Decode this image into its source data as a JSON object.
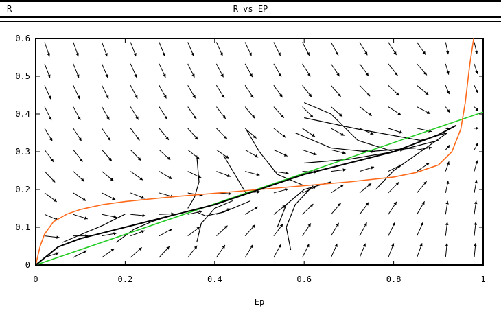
{
  "window": {
    "left_label": "R",
    "title": "R vs EP"
  },
  "chart_data": {
    "type": "line",
    "title": "R vs EP",
    "xlabel": "Ep",
    "ylabel": "",
    "xlim": [
      0,
      1
    ],
    "ylim": [
      0,
      0.6
    ],
    "x_ticks": [
      "0",
      "0.2",
      "0.4",
      "0.6",
      "0.8",
      "1"
    ],
    "x_tick_values": [
      0,
      0.2,
      0.4,
      0.6,
      0.8,
      1
    ],
    "y_ticks": [
      "0",
      "0.1",
      "0.2",
      "0.3",
      "0.4",
      "0.5",
      "0.6"
    ],
    "y_tick_values": [
      0,
      0.1,
      0.2,
      0.3,
      0.4,
      0.5,
      0.6
    ],
    "grid": false,
    "colors": {
      "green_line": "#22cc22",
      "orange_curve": "#ff6a1a",
      "trajectories": "#000000",
      "arrows": "#000000"
    },
    "series": [
      {
        "values_x": [
          0,
          1
        ],
        "values_y": [
          0,
          0.405
        ]
      },
      {
        "values_x": [
          0.0,
          0.01,
          0.02,
          0.04,
          0.07,
          0.1,
          0.15,
          0.2,
          0.3,
          0.4,
          0.5,
          0.6,
          0.7,
          0.8,
          0.85,
          0.9,
          0.93,
          0.95,
          0.96,
          0.97,
          0.98
        ],
        "values_y": [
          0.0,
          0.05,
          0.082,
          0.115,
          0.135,
          0.147,
          0.16,
          0.168,
          0.18,
          0.19,
          0.2,
          0.21,
          0.22,
          0.233,
          0.245,
          0.265,
          0.3,
          0.36,
          0.43,
          0.53,
          0.61
        ]
      },
      {
        "values_x": [
          0.0,
          0.05,
          0.1,
          0.2,
          0.3,
          0.4,
          0.5,
          0.6,
          0.7,
          0.8,
          0.9,
          0.94
        ],
        "values_y": [
          0.0,
          0.048,
          0.07,
          0.1,
          0.13,
          0.16,
          0.2,
          0.24,
          0.27,
          0.3,
          0.345,
          0.37
        ]
      }
    ],
    "trajectories": [
      {
        "x": [
          0.06,
          0.1,
          0.15,
          0.2
        ],
        "y": [
          0.06,
          0.08,
          0.105,
          0.135
        ]
      },
      {
        "x": [
          0.18,
          0.22,
          0.26,
          0.3
        ],
        "y": [
          0.06,
          0.095,
          0.115,
          0.13
        ]
      },
      {
        "x": [
          0.36,
          0.365,
          0.355,
          0.34
        ],
        "y": [
          0.29,
          0.22,
          0.18,
          0.15
        ]
      },
      {
        "x": [
          0.36,
          0.37,
          0.4,
          0.44
        ],
        "y": [
          0.06,
          0.11,
          0.15,
          0.17
        ]
      },
      {
        "x": [
          0.42,
          0.44,
          0.46,
          0.47
        ],
        "y": [
          0.29,
          0.25,
          0.21,
          0.19
        ]
      },
      {
        "x": [
          0.36,
          0.38,
          0.42,
          0.48
        ],
        "y": [
          0.14,
          0.13,
          0.14,
          0.17
        ]
      },
      {
        "x": [
          0.47,
          0.5,
          0.54,
          0.6
        ],
        "y": [
          0.36,
          0.3,
          0.24,
          0.21
        ]
      },
      {
        "x": [
          0.57,
          0.56,
          0.58,
          0.62
        ],
        "y": [
          0.04,
          0.1,
          0.16,
          0.21
        ]
      },
      {
        "x": [
          0.54,
          0.56,
          0.6,
          0.66
        ],
        "y": [
          0.1,
          0.16,
          0.2,
          0.22
        ]
      },
      {
        "x": [
          0.6,
          0.66,
          0.72,
          0.8
        ],
        "y": [
          0.43,
          0.4,
          0.33,
          0.3
        ]
      },
      {
        "x": [
          0.58,
          0.66,
          0.74,
          0.85
        ],
        "y": [
          0.35,
          0.31,
          0.3,
          0.31
        ]
      },
      {
        "x": [
          0.6,
          0.7,
          0.8,
          0.9
        ],
        "y": [
          0.27,
          0.28,
          0.3,
          0.33
        ]
      },
      {
        "x": [
          0.6,
          0.72,
          0.86,
          0.92
        ],
        "y": [
          0.39,
          0.36,
          0.33,
          0.35
        ]
      },
      {
        "x": [
          0.76,
          0.8,
          0.86,
          0.92
        ],
        "y": [
          0.2,
          0.25,
          0.3,
          0.35
        ]
      }
    ]
  }
}
